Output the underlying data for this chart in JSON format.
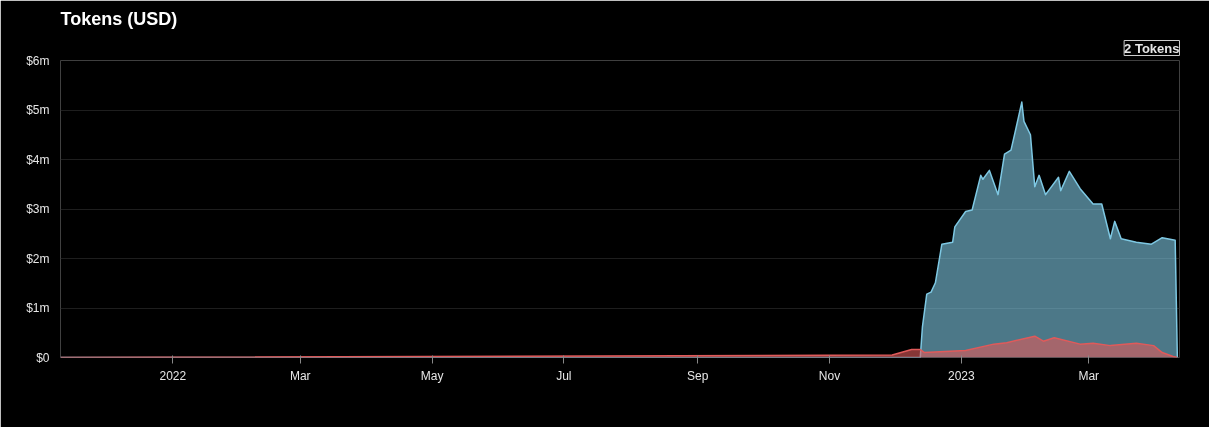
{
  "chart_data": {
    "type": "area",
    "title": "Tokens (USD)",
    "annotations": [
      "2 Tokens"
    ],
    "xlim": [
      "2021-11-10",
      "2023-04-12"
    ],
    "xticks": [
      {
        "value": "2022-01-01",
        "label": "2022"
      },
      {
        "value": "2022-03-01",
        "label": "Mar"
      },
      {
        "value": "2022-05-01",
        "label": "May"
      },
      {
        "value": "2022-07-01",
        "label": "Jul"
      },
      {
        "value": "2022-09-01",
        "label": "Sep"
      },
      {
        "value": "2022-11-01",
        "label": "Nov"
      },
      {
        "value": "2023-01-01",
        "label": "2023"
      },
      {
        "value": "2023-03-01",
        "label": "Mar"
      }
    ],
    "ylim": [
      0,
      6
    ],
    "yticks": [
      {
        "value": 0,
        "label": "$0"
      },
      {
        "value": 1,
        "label": "$1m"
      },
      {
        "value": 2,
        "label": "$2m"
      },
      {
        "value": 3,
        "label": "$3m"
      },
      {
        "value": 4,
        "label": "$4m"
      },
      {
        "value": 5,
        "label": "$5m"
      },
      {
        "value": 6,
        "label": "$6m"
      }
    ],
    "grid": "y",
    "series": [
      {
        "color": "#7ec8e3",
        "x": [
          "2021-11-10",
          "2022-12-13",
          "2022-12-14",
          "2022-12-16",
          "2022-12-18",
          "2022-12-20",
          "2022-12-23",
          "2022-12-28",
          "2022-12-29",
          "2023-01-03",
          "2023-01-06",
          "2023-01-10",
          "2023-01-11",
          "2023-01-14",
          "2023-01-18",
          "2023-01-21",
          "2023-01-24",
          "2023-01-26",
          "2023-01-29",
          "2023-01-30",
          "2023-02-02",
          "2023-02-04",
          "2023-02-06",
          "2023-02-09",
          "2023-02-15",
          "2023-02-16",
          "2023-02-20",
          "2023-02-25",
          "2023-03-03",
          "2023-03-07",
          "2023-03-11",
          "2023-03-13",
          "2023-03-16",
          "2023-03-23",
          "2023-03-30",
          "2023-04-04",
          "2023-04-10",
          "2023-04-11"
        ],
        "values": [
          0,
          0,
          0.62,
          1.28,
          1.32,
          1.51,
          2.29,
          2.33,
          2.64,
          2.95,
          2.98,
          3.68,
          3.6,
          3.78,
          3.29,
          4.11,
          4.19,
          4.57,
          5.16,
          4.77,
          4.5,
          3.45,
          3.68,
          3.29,
          3.64,
          3.37,
          3.76,
          3.41,
          3.1,
          3.1,
          2.4,
          2.75,
          2.4,
          2.33,
          2.29,
          2.42,
          2.37,
          0
        ]
      },
      {
        "color": "#e05a5a",
        "x": [
          "2021-11-10",
          "2022-11-30",
          "2022-12-09",
          "2022-12-13",
          "2022-12-15",
          "2023-01-03",
          "2023-01-16",
          "2023-01-22",
          "2023-02-04",
          "2023-02-08",
          "2023-02-13",
          "2023-02-25",
          "2023-03-03",
          "2023-03-11",
          "2023-03-23",
          "2023-03-31",
          "2023-04-04",
          "2023-04-09",
          "2023-04-11"
        ],
        "values": [
          0,
          0.05,
          0.16,
          0.16,
          0.1,
          0.14,
          0.27,
          0.3,
          0.43,
          0.33,
          0.4,
          0.27,
          0.29,
          0.24,
          0.29,
          0.24,
          0.1,
          0.02,
          0
        ]
      }
    ]
  }
}
